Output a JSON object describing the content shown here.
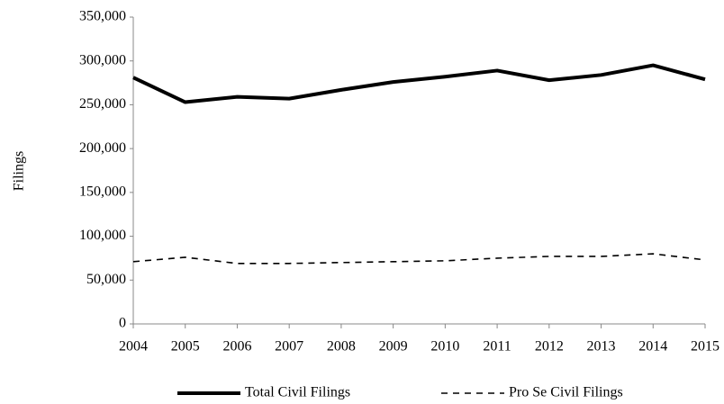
{
  "chart_data": {
    "type": "line",
    "y_label": "Filings",
    "x": [
      2004,
      2005,
      2006,
      2007,
      2008,
      2009,
      2010,
      2011,
      2012,
      2013,
      2014,
      2015
    ],
    "xlim": [
      2004,
      2015
    ],
    "xticks": [
      2004,
      2005,
      2006,
      2007,
      2008,
      2009,
      2010,
      2011,
      2012,
      2013,
      2014,
      2015
    ],
    "ylim": [
      0,
      350000
    ],
    "yticks": [
      0,
      {
        "value": 50000,
        "label": "50,000"
      },
      {
        "value": 100000,
        "label": "100,000"
      },
      {
        "value": 150000,
        "label": "150,000"
      },
      {
        "value": 200000,
        "label": "200,000"
      },
      {
        "value": 250000,
        "label": "250,000"
      },
      {
        "value": 300000,
        "label": "300,000"
      },
      {
        "value": 350000,
        "label": "350,000"
      }
    ],
    "grid": false,
    "legend": "bottom",
    "series": [
      {
        "name": "Total Civil Filings",
        "color": "#000000",
        "style": "solid",
        "values": [
          281000,
          253000,
          259000,
          257000,
          267000,
          276000,
          282000,
          289000,
          278000,
          284000,
          295000,
          279000
        ]
      },
      {
        "name": "Pro Se Civil Filings",
        "color": "#000000",
        "style": "dashed",
        "values": [
          71000,
          76000,
          69000,
          69000,
          70000,
          71000,
          72000,
          75000,
          77000,
          77000,
          80000,
          73000
        ]
      }
    ]
  }
}
